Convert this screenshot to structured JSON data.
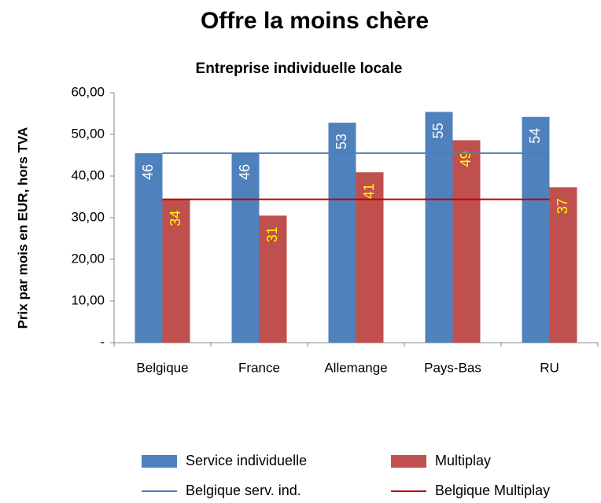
{
  "chart_data": {
    "type": "bar",
    "title": "Offre la moins chère",
    "subtitle": "Entreprise individuelle locale",
    "y_label": "Prix par mois en EUR, hors TVA",
    "categories": [
      "Belgique",
      "France",
      "Allemange",
      "Pays-Bas",
      "RU"
    ],
    "series": [
      {
        "name": "Service individuelle",
        "color": "#4f81bd",
        "values": [
          45.5,
          45.5,
          52.8,
          55.4,
          54.2
        ],
        "value_labels": [
          "46",
          "46",
          "53",
          "55",
          "54"
        ],
        "label_color": "#ffffff"
      },
      {
        "name": "Multiplay",
        "color": "#c0504d",
        "values": [
          34.4,
          30.5,
          40.9,
          48.6,
          37.3
        ],
        "value_labels": [
          "34",
          "31",
          "41",
          "49",
          "37"
        ],
        "label_color": "#ffff00"
      },
      {
        "name": "Belgique serv. ind.",
        "type": "line",
        "color": "#4a7ebb",
        "values": [
          45.5,
          45.5,
          45.5,
          45.5,
          45.5
        ]
      },
      {
        "name": "Belgique Multiplay",
        "type": "line",
        "color": "#c00000",
        "values": [
          34.4,
          34.4,
          34.4,
          34.4,
          34.4
        ]
      }
    ],
    "ylim": [
      0,
      60
    ],
    "yticks": [
      {
        "value": 0,
        "label": "-"
      },
      {
        "value": 10,
        "label": "10,00"
      },
      {
        "value": 20,
        "label": "20,00"
      },
      {
        "value": 30,
        "label": "30,00"
      },
      {
        "value": 40,
        "label": "40,00"
      },
      {
        "value": 50,
        "label": "50,00"
      },
      {
        "value": 60,
        "label": "60,00"
      }
    ],
    "grid": false,
    "legend": "bottom"
  }
}
